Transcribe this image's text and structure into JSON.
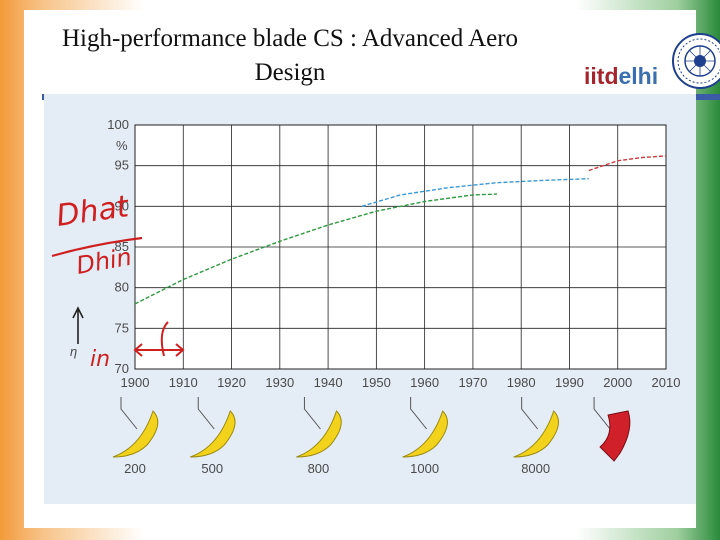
{
  "slide": {
    "title": "High-performance blade CS : Advanced Aero Design",
    "logo_text_a": "iitd",
    "logo_text_b": "elhi"
  },
  "handwriting": {
    "dhat": "Dhat",
    "dhin": "Dhin",
    "eta_in": "in"
  },
  "chart_data": {
    "type": "line",
    "xlim": [
      1900,
      2010
    ],
    "ylim": [
      70,
      100
    ],
    "x_ticks": [
      1900,
      1910,
      1920,
      1930,
      1940,
      1950,
      1960,
      1970,
      1980,
      1990,
      2000,
      2010
    ],
    "y_ticks": [
      70,
      75,
      80,
      85,
      90,
      95,
      100
    ],
    "y_unit": "%",
    "ylabel": "η",
    "grid": true,
    "series": [
      {
        "color": "#2e9a3e",
        "x": [
          1900,
          1910,
          1920,
          1930,
          1940,
          1950,
          1960,
          1970,
          1975
        ],
        "y": [
          78.0,
          81.0,
          83.5,
          85.7,
          87.7,
          89.4,
          90.6,
          91.4,
          91.5
        ]
      },
      {
        "color": "#3a9ad9",
        "x": [
          1947,
          1955,
          1965,
          1975,
          1985,
          1994
        ],
        "y": [
          90.0,
          91.4,
          92.3,
          92.9,
          93.2,
          93.4
        ]
      },
      {
        "color": "#d03a3a",
        "x": [
          1994,
          2000,
          2005,
          2010
        ],
        "y": [
          94.4,
          95.6,
          96.0,
          96.2
        ]
      }
    ],
    "blades": [
      {
        "x": 1900,
        "label": "200",
        "color": "#f2d21a"
      },
      {
        "x": 1916,
        "label": "500",
        "color": "#f2d21a"
      },
      {
        "x": 1938,
        "label": "800",
        "color": "#f2d21a"
      },
      {
        "x": 1960,
        "label": "1000",
        "color": "#f2d21a"
      },
      {
        "x": 1983,
        "label": "8000",
        "color": "#f2d21a"
      },
      {
        "x": 1998,
        "label": "",
        "color": "#d0202a"
      }
    ]
  }
}
